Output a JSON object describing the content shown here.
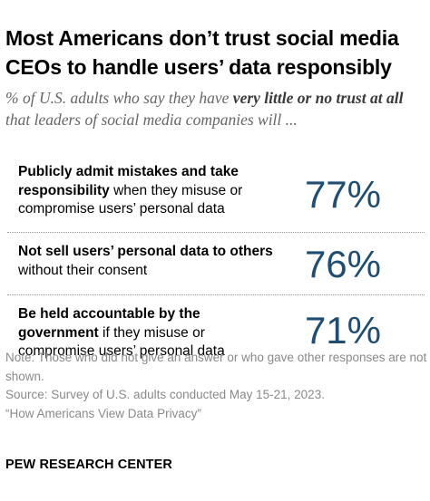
{
  "title": "Most Americans don’t trust social media CEOs to handle users’ data responsibly",
  "subtitle": {
    "prefix": "% of U.S. adults who say they have ",
    "emphasis": "very little or no trust at all",
    "suffix": " that leaders of social media companies will ..."
  },
  "chart_data": {
    "type": "table",
    "title": "Most Americans don’t trust social media CEOs to handle users’ data responsibly",
    "subtitle": "% of U.S. adults who say they have very little or no trust at all that leaders of social media companies will ...",
    "rows": [
      {
        "label_bold": "Publicly admit mistakes and take responsibility",
        "label_rest": " when they misuse or compromise users’ personal data",
        "value": 77,
        "value_label": "77%"
      },
      {
        "label_bold": "Not sell users’ personal data to others",
        "label_rest": " without their consent",
        "value": 76,
        "value_label": "76%"
      },
      {
        "label_bold": "Be held accountable by the government",
        "label_rest": " if they misuse or compromise users’ personal data",
        "value": 71,
        "value_label": "71%"
      }
    ],
    "value_color": "#1f4e72"
  },
  "notes": {
    "note": "Note: Those who did not give an answer or who gave other responses are not shown.",
    "source": "Source: Survey of U.S. adults conducted May 15-21, 2023.",
    "report": "“How Americans View Data Privacy”"
  },
  "logo_text": "PEW RESEARCH CENTER"
}
